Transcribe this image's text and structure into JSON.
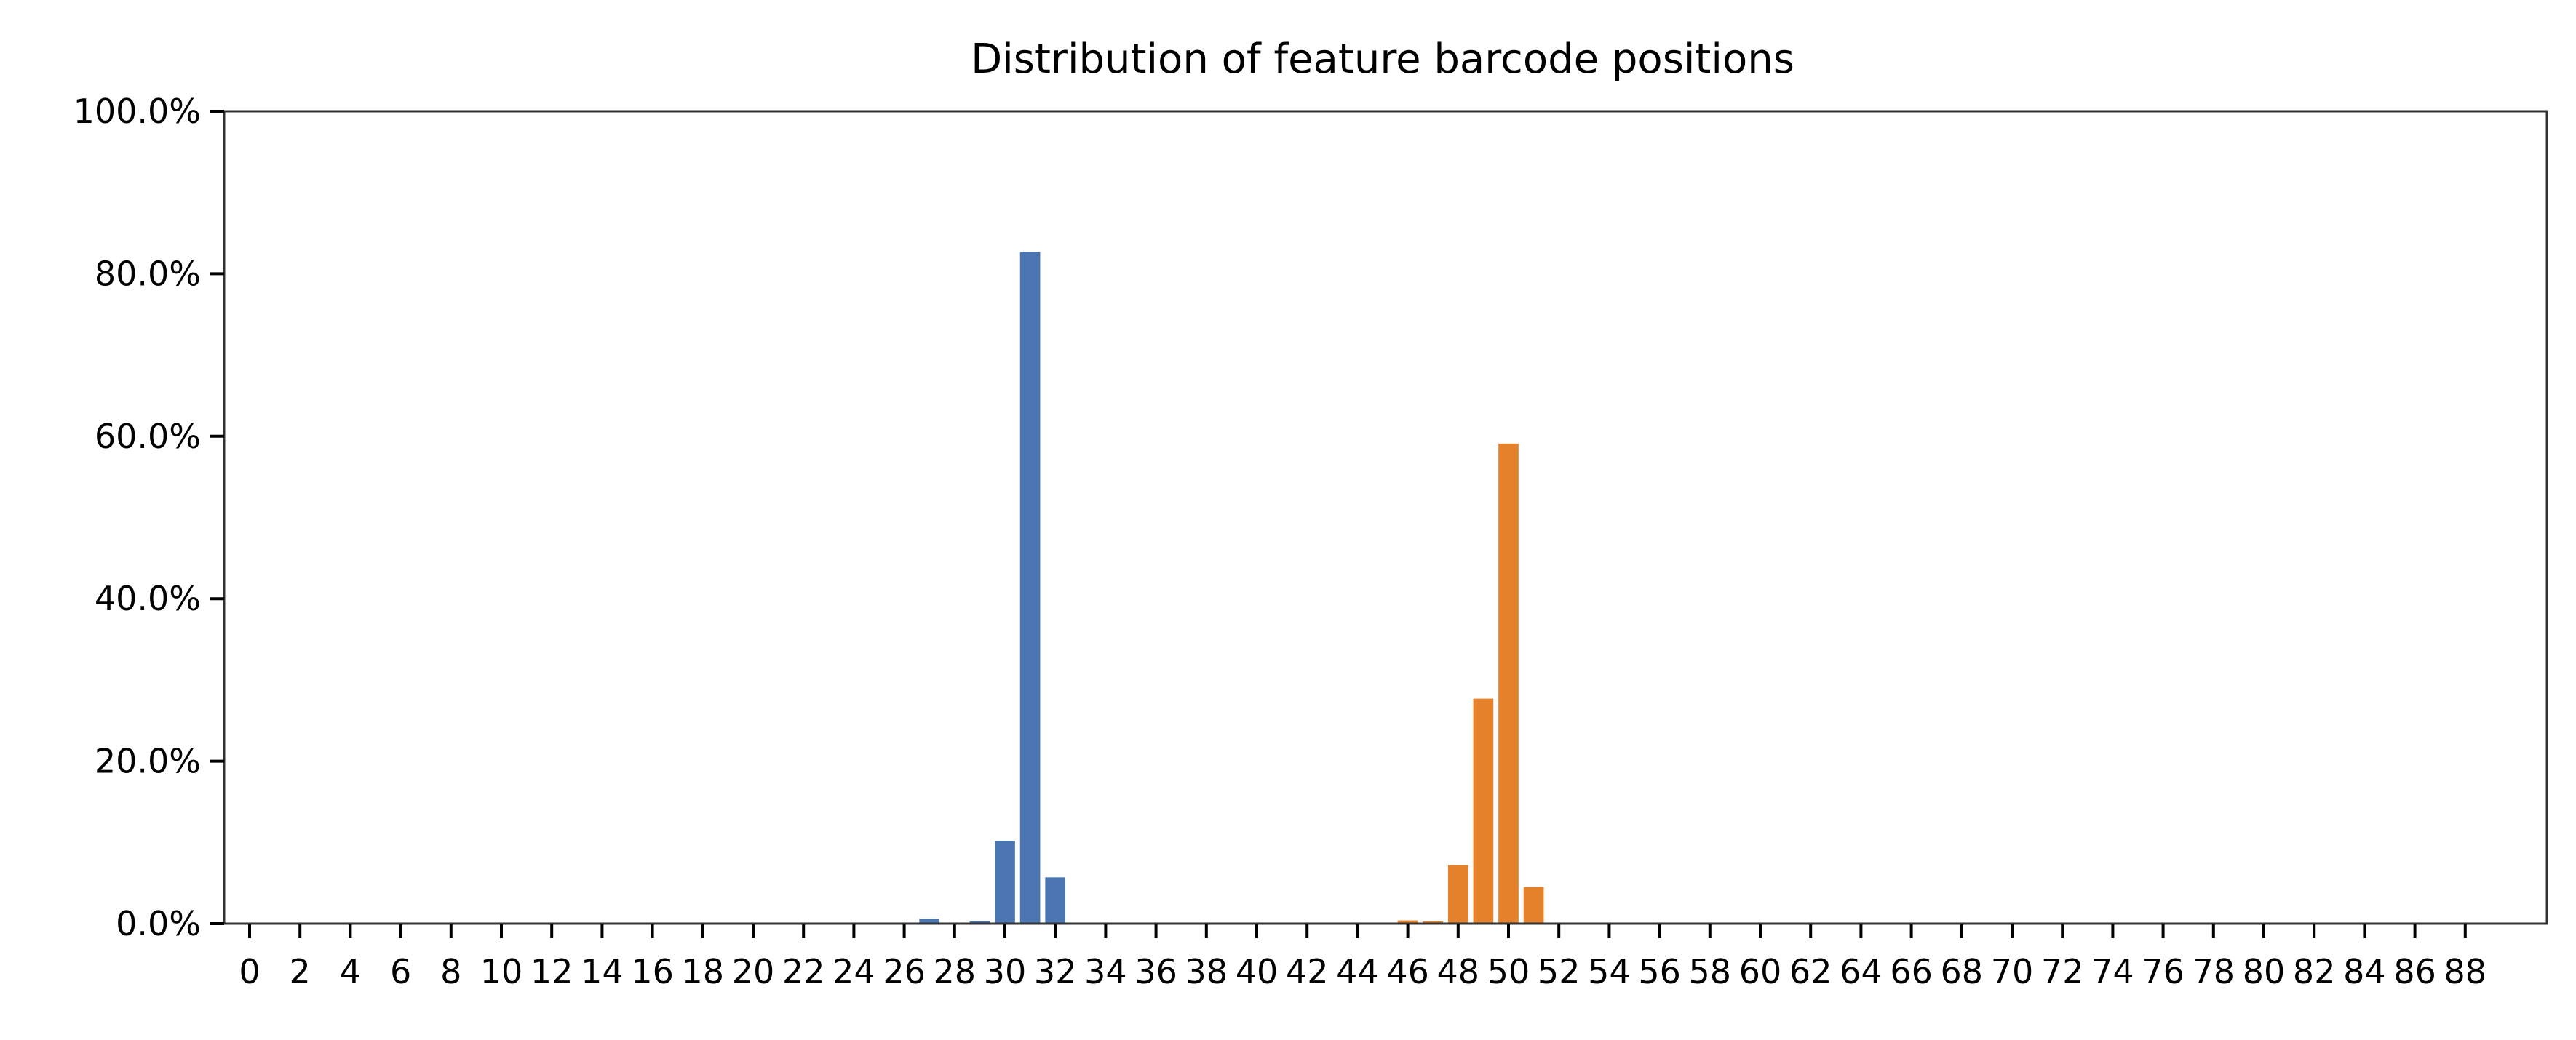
{
  "chart_data": {
    "type": "bar",
    "title": "Distribution of feature barcode positions",
    "xlabel": "",
    "ylabel": "",
    "x_range": [
      0,
      88
    ],
    "x_tick_labels": [
      "0",
      "2",
      "4",
      "6",
      "8",
      "10",
      "12",
      "14",
      "16",
      "18",
      "20",
      "22",
      "24",
      "26",
      "28",
      "30",
      "32",
      "34",
      "36",
      "38",
      "40",
      "42",
      "44",
      "46",
      "48",
      "50",
      "52",
      "54",
      "56",
      "58",
      "60",
      "62",
      "64",
      "66",
      "68",
      "70",
      "72",
      "74",
      "76",
      "78",
      "80",
      "82",
      "84",
      "86",
      "88"
    ],
    "ylim": [
      0,
      100
    ],
    "y_tick_labels": [
      "0.0%",
      "20.0%",
      "40.0%",
      "60.0%",
      "80.0%",
      "100.0%"
    ],
    "y_ticks": [
      0,
      20,
      40,
      60,
      80,
      100
    ],
    "grid": false,
    "legend": "none",
    "series": [
      {
        "color": "#4a75b0",
        "points": [
          {
            "x": 27,
            "y": 0.6
          },
          {
            "x": 29,
            "y": 0.3
          },
          {
            "x": 30,
            "y": 10.2
          },
          {
            "x": 31,
            "y": 82.7
          },
          {
            "x": 32,
            "y": 5.7
          }
        ]
      },
      {
        "color": "#e5812a",
        "points": [
          {
            "x": 46,
            "y": 0.4
          },
          {
            "x": 47,
            "y": 0.3
          },
          {
            "x": 48,
            "y": 7.2
          },
          {
            "x": 49,
            "y": 27.7
          },
          {
            "x": 50,
            "y": 59.1
          },
          {
            "x": 51,
            "y": 4.5
          }
        ]
      }
    ]
  }
}
